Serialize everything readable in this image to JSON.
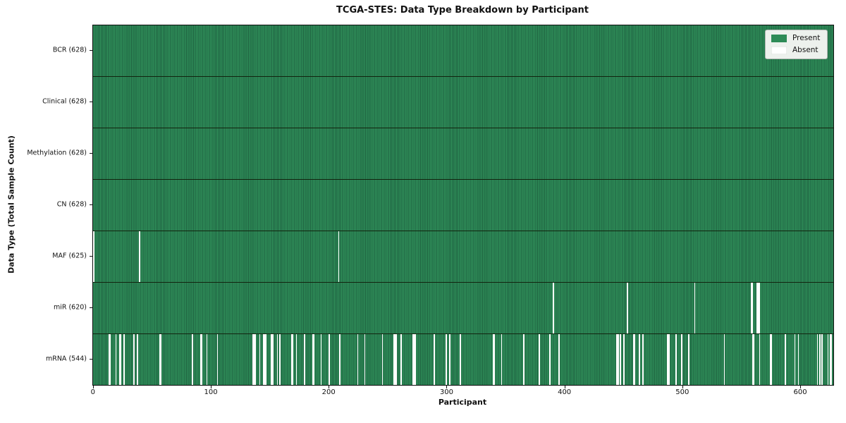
{
  "title": "TCGA-STES: Data Type Breakdown by Participant",
  "legend": {
    "present_label": "Present",
    "absent_label": "Absent"
  },
  "colors": {
    "present": "#2e8b57",
    "present_edge": "#1e6240",
    "absent": "#ffffff",
    "row_divider": "#12240f",
    "axis": "#111111",
    "legend_bg": "#edf1ed"
  },
  "x_ticks": [
    0,
    100,
    200,
    300,
    400,
    500,
    600
  ],
  "chart_data": {
    "type": "heatmap",
    "title": "TCGA-STES: Data Type Breakdown by Participant",
    "xlabel": "Participant",
    "ylabel": "Data Type (Total Sample Count)",
    "legend": [
      "Present",
      "Absent"
    ],
    "n_participants": 628,
    "x_range": [
      0,
      628
    ],
    "x_tick_values": [
      0,
      100,
      200,
      300,
      400,
      500,
      600
    ],
    "grid": false,
    "legend_position": "upper right",
    "rows": [
      {
        "name": "BCR",
        "label": "BCR (628)",
        "present_count": 628,
        "absent_participants": []
      },
      {
        "name": "Clinical",
        "label": "Clinical (628)",
        "present_count": 628,
        "absent_participants": []
      },
      {
        "name": "Methylation",
        "label": "Methylation (628)",
        "present_count": 628,
        "absent_participants": []
      },
      {
        "name": "CN",
        "label": "CN (628)",
        "present_count": 628,
        "absent_participants": []
      },
      {
        "name": "MAF",
        "label": "MAF (625)",
        "present_count": 625,
        "absent_participants": [
          0,
          39,
          208
        ]
      },
      {
        "name": "miR",
        "label": "miR (620)",
        "present_count": 620,
        "absent_participants": [
          390,
          453,
          510,
          558,
          559,
          563,
          564,
          565
        ]
      },
      {
        "name": "mRNA",
        "label": "mRNA (544)",
        "present_count": 544,
        "absent_participants": [
          13,
          14,
          19,
          22,
          23,
          26,
          34,
          37,
          56,
          57,
          84,
          91,
          92,
          96,
          105,
          135,
          136,
          137,
          141,
          144,
          145,
          146,
          151,
          152,
          156,
          158,
          168,
          169,
          172,
          179,
          186,
          187,
          193,
          200,
          209,
          224,
          230,
          245,
          255,
          256,
          257,
          261,
          271,
          272,
          273,
          289,
          299,
          302,
          311,
          339,
          340,
          346,
          365,
          378,
          387,
          395,
          444,
          445,
          447,
          450,
          458,
          459,
          463,
          466,
          487,
          488,
          494,
          499,
          505,
          535,
          559,
          560,
          565,
          574,
          575,
          587,
          595,
          598,
          614,
          616,
          618,
          623,
          625,
          626
        ]
      }
    ]
  }
}
